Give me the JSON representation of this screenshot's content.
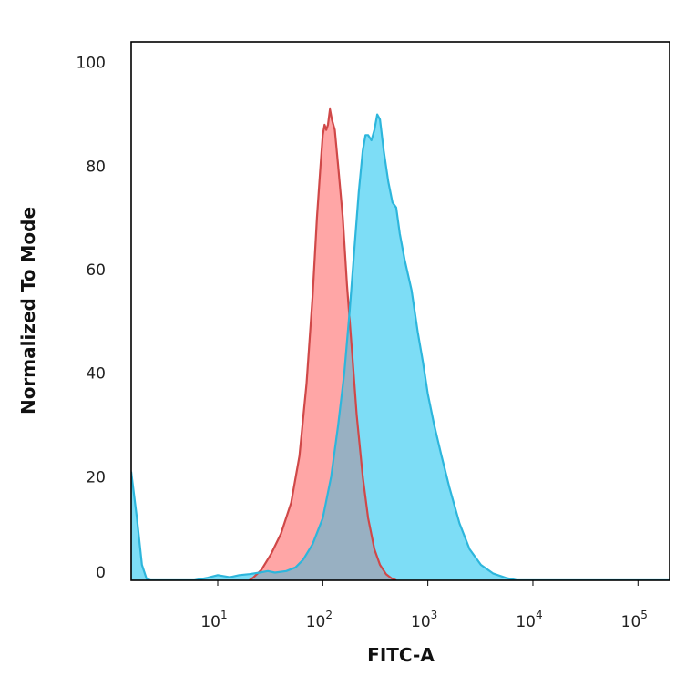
{
  "chart_data": {
    "type": "area",
    "xlabel": "FITC-A",
    "ylabel": "Normalized To Mode",
    "x_scale": "log",
    "xlim": [
      1.5,
      200000
    ],
    "ylim": [
      0,
      104
    ],
    "x_ticks": [
      {
        "value": 10,
        "base": "10",
        "exp": "1"
      },
      {
        "value": 100,
        "base": "10",
        "exp": "2"
      },
      {
        "value": 1000,
        "base": "10",
        "exp": "3"
      },
      {
        "value": 10000,
        "base": "10",
        "exp": "4"
      },
      {
        "value": 100000,
        "base": "10",
        "exp": "5"
      }
    ],
    "y_ticks": [
      {
        "value": 0,
        "label": "0"
      },
      {
        "value": 20,
        "label": "20"
      },
      {
        "value": 40,
        "label": "40"
      },
      {
        "value": 60,
        "label": "60"
      },
      {
        "value": 80,
        "label": "80"
      },
      {
        "value": 100,
        "label": "100"
      }
    ],
    "grid": false,
    "series": [
      {
        "fill": "#ff9c9c",
        "stroke": "#d04848",
        "points": [
          [
            20,
            0
          ],
          [
            22,
            0.6
          ],
          [
            26,
            2
          ],
          [
            32,
            5
          ],
          [
            40,
            9
          ],
          [
            50,
            15
          ],
          [
            60,
            24
          ],
          [
            70,
            38
          ],
          [
            80,
            55
          ],
          [
            88,
            70
          ],
          [
            95,
            80
          ],
          [
            100,
            86
          ],
          [
            104,
            88
          ],
          [
            108,
            87
          ],
          [
            112,
            88
          ],
          [
            117,
            91
          ],
          [
            122,
            89
          ],
          [
            130,
            87
          ],
          [
            140,
            80
          ],
          [
            155,
            70
          ],
          [
            170,
            57
          ],
          [
            190,
            44
          ],
          [
            210,
            32
          ],
          [
            240,
            20
          ],
          [
            270,
            12
          ],
          [
            310,
            6
          ],
          [
            350,
            3
          ],
          [
            400,
            1.2
          ],
          [
            450,
            0.4
          ],
          [
            500,
            0
          ]
        ]
      },
      {
        "fill": "#6fd9f5",
        "stroke": "#2db6dc",
        "points": [
          [
            1.5,
            21
          ],
          [
            1.7,
            12
          ],
          [
            1.9,
            3
          ],
          [
            2.1,
            0.3
          ],
          [
            2.3,
            0
          ],
          [
            4,
            0
          ],
          [
            6,
            0
          ],
          [
            8,
            0.5
          ],
          [
            10,
            1
          ],
          [
            13,
            0.6
          ],
          [
            16,
            1
          ],
          [
            20,
            1.2
          ],
          [
            25,
            1.5
          ],
          [
            30,
            1.8
          ],
          [
            35,
            1.5
          ],
          [
            45,
            1.8
          ],
          [
            55,
            2.5
          ],
          [
            65,
            4
          ],
          [
            80,
            7
          ],
          [
            100,
            12
          ],
          [
            120,
            20
          ],
          [
            140,
            30
          ],
          [
            160,
            40
          ],
          [
            180,
            52
          ],
          [
            200,
            64
          ],
          [
            220,
            75
          ],
          [
            240,
            83
          ],
          [
            255,
            86
          ],
          [
            270,
            86
          ],
          [
            290,
            85
          ],
          [
            310,
            87
          ],
          [
            330,
            90
          ],
          [
            350,
            89
          ],
          [
            380,
            83
          ],
          [
            420,
            77
          ],
          [
            460,
            73
          ],
          [
            500,
            72
          ],
          [
            540,
            67
          ],
          [
            600,
            62
          ],
          [
            700,
            56
          ],
          [
            800,
            48
          ],
          [
            900,
            42
          ],
          [
            1000,
            36
          ],
          [
            1150,
            30
          ],
          [
            1350,
            24
          ],
          [
            1600,
            18
          ],
          [
            2000,
            11
          ],
          [
            2500,
            6
          ],
          [
            3200,
            3
          ],
          [
            4200,
            1.3
          ],
          [
            5500,
            0.5
          ],
          [
            7000,
            0
          ],
          [
            200000,
            0
          ]
        ]
      }
    ]
  },
  "colors": {
    "overlap_fill": "#9aaec0"
  }
}
